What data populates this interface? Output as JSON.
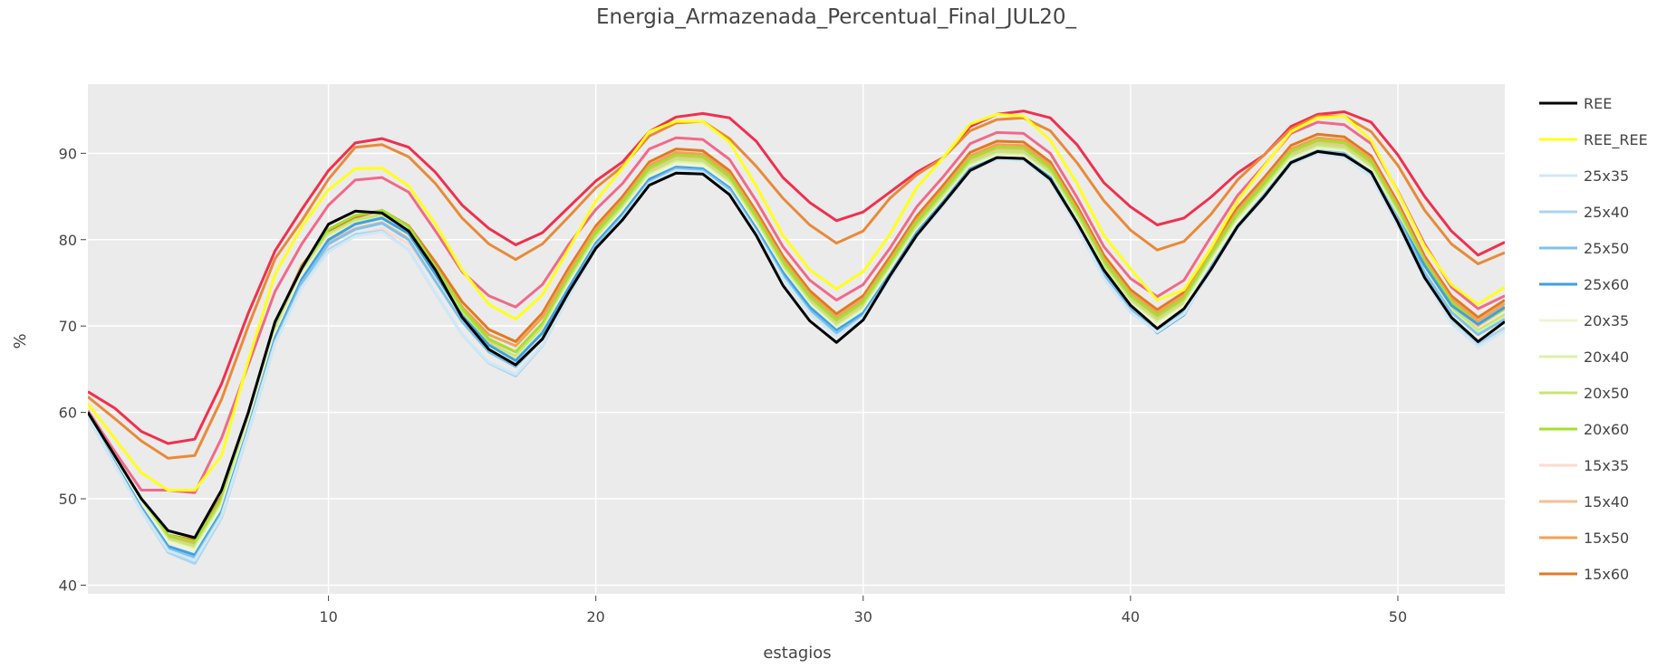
{
  "chart_data": {
    "type": "line",
    "title": "Energia_Armazenada_Percentual_Final_JUL20_",
    "xlabel": "estagios",
    "ylabel": "%",
    "xlim": [
      1,
      54
    ],
    "ylim": [
      39,
      98
    ],
    "xticks": [
      10,
      20,
      30,
      40,
      50
    ],
    "yticks": [
      40,
      50,
      60,
      70,
      80,
      90
    ],
    "grid": true,
    "plot_background": "#ebebeb",
    "legend_position": "right",
    "x": [
      1,
      2,
      3,
      4,
      5,
      6,
      7,
      8,
      9,
      10,
      11,
      12,
      13,
      14,
      15,
      16,
      17,
      18,
      19,
      20,
      21,
      22,
      23,
      24,
      25,
      26,
      27,
      28,
      29,
      30,
      31,
      32,
      33,
      34,
      35,
      36,
      37,
      38,
      39,
      40,
      41,
      42,
      43,
      44,
      45,
      46,
      47,
      48,
      49,
      50,
      51,
      52,
      53,
      54
    ],
    "series": [
      {
        "name": "REE",
        "color": "#000000",
        "width": 3,
        "values": [
          60,
          55,
          50,
          46.3,
          45.5,
          51,
          60,
          70.5,
          76.7,
          81.8,
          83.3,
          83.1,
          81,
          76.5,
          71,
          67.3,
          65.5,
          68.5,
          74,
          79,
          82.3,
          86.3,
          87.7,
          87.6,
          85.2,
          80.5,
          74.7,
          70.6,
          68.1,
          70.7,
          75.8,
          80.5,
          84.2,
          88,
          89.5,
          89.4,
          87,
          82,
          76.5,
          72.4,
          69.7,
          72,
          76.5,
          81.5,
          85,
          88.9,
          90.2,
          89.8,
          87.8,
          82,
          75.6,
          71,
          68.2,
          70.5
        ]
      },
      {
        "name": "REE_REE",
        "color": "#ffff1a",
        "width": 3,
        "values": [
          61,
          57,
          53,
          51,
          51,
          55,
          66,
          76,
          81.5,
          85.8,
          88.2,
          88.3,
          86.2,
          81.8,
          76.5,
          72.5,
          70.8,
          73.6,
          79,
          84.5,
          88.3,
          92.5,
          93.7,
          93.7,
          91.3,
          86.2,
          80.5,
          76.5,
          74.3,
          76.3,
          80.6,
          86,
          89.5,
          93.4,
          94.5,
          94.3,
          91.5,
          86.5,
          80.5,
          76.6,
          73,
          74.2,
          79,
          84.5,
          88.5,
          92.5,
          94.1,
          94.3,
          91.5,
          85.5,
          79.2,
          74.8,
          72.5,
          74.5
        ]
      },
      {
        "name": "25x35",
        "color": "#d0e8f5",
        "width": 3,
        "values": [
          59.5,
          54,
          48.6,
          44,
          42.9,
          48,
          57.8,
          68,
          74.5,
          78.6,
          80.4,
          80.9,
          78.8,
          73.8,
          69,
          65.8,
          64.4,
          67.8,
          73.5,
          79,
          82.5,
          86.5,
          88,
          87.8,
          85.5,
          80.8,
          75.5,
          71.5,
          68.8,
          71,
          75.5,
          80.4,
          84,
          88,
          89.3,
          89.2,
          86.8,
          81.5,
          75.5,
          71.6,
          69.3,
          71.4,
          76.5,
          81.3,
          84.9,
          88.7,
          90,
          89.6,
          87.3,
          81.6,
          75.5,
          70.3,
          67.6,
          69.5
        ]
      },
      {
        "name": "25x40",
        "color": "#a9d4ee",
        "width": 3,
        "values": [
          59.5,
          54,
          48.6,
          43.8,
          42.5,
          47.8,
          57.7,
          68,
          74.5,
          78.8,
          80.6,
          81,
          78.8,
          73.8,
          69,
          65.7,
          64.2,
          67.7,
          73.5,
          79,
          82.5,
          86.5,
          88,
          87.8,
          85.5,
          80.8,
          75.5,
          71.5,
          68.8,
          71,
          75.5,
          80.4,
          84,
          88,
          89.3,
          89.2,
          86.8,
          81.5,
          75.5,
          71.6,
          69.3,
          71.4,
          76.5,
          81.3,
          84.9,
          88.7,
          90,
          89.6,
          87.3,
          81.6,
          75.5,
          70.8,
          68,
          69.8
        ]
      },
      {
        "name": "25x50",
        "color": "#7fc2ea",
        "width": 3,
        "values": [
          59.5,
          54,
          48.8,
          44.2,
          43.2,
          48.2,
          58,
          68.3,
          75,
          79.5,
          81.2,
          81.9,
          80,
          75.2,
          70.5,
          67,
          65.3,
          68.5,
          74,
          79.3,
          82.7,
          86.7,
          88.2,
          88,
          85.8,
          81,
          75.8,
          71.8,
          69.2,
          71.2,
          75.8,
          80.6,
          84.2,
          88.1,
          89.4,
          89.3,
          87,
          81.8,
          76,
          72,
          69.6,
          71.8,
          76.8,
          81.6,
          85.2,
          89,
          90.3,
          90,
          87.8,
          82.5,
          76.2,
          71.6,
          69,
          70.8
        ]
      },
      {
        "name": "25x60",
        "color": "#3ea0e3",
        "width": 3,
        "values": [
          59.5,
          54.2,
          49,
          44.5,
          43.5,
          48.5,
          58.2,
          68.6,
          75.4,
          80,
          81.8,
          82.5,
          80.7,
          76,
          71.2,
          67.8,
          66,
          69.2,
          74.5,
          79.6,
          83,
          87,
          88.4,
          88.2,
          86,
          81.3,
          76.2,
          72.2,
          69.5,
          71.5,
          76,
          80.8,
          84.4,
          88.2,
          89.5,
          89.4,
          87.2,
          82,
          76.4,
          72.3,
          69.2,
          71.3,
          76.6,
          81.5,
          85,
          88.9,
          90.2,
          89.8,
          87.6,
          82.5,
          77,
          72.4,
          70.2,
          72.2
        ]
      },
      {
        "name": "20x35",
        "color": "#eef5d3",
        "width": 3,
        "values": [
          59.6,
          54.4,
          49.4,
          45,
          44,
          49,
          58.6,
          69,
          75.8,
          80.2,
          81.8,
          82.4,
          80.5,
          75.8,
          71,
          67.5,
          66,
          69.3,
          74.8,
          79.8,
          83.3,
          87.3,
          88.8,
          88.6,
          86.3,
          81.6,
          76.4,
          72.4,
          69.7,
          71.8,
          76.3,
          81,
          84.6,
          88.4,
          89.7,
          89.6,
          87.3,
          82.2,
          76.5,
          72.5,
          70.2,
          72.2,
          77.2,
          82,
          85.5,
          89.2,
          90.5,
          90.2,
          88,
          82.6,
          76.4,
          71.5,
          68.9,
          70.7
        ]
      },
      {
        "name": "20x40",
        "color": "#ddf0a8",
        "width": 3,
        "values": [
          59.6,
          54.5,
          49.5,
          45.1,
          44.2,
          49.2,
          58.8,
          69.2,
          76,
          80.4,
          82,
          82.6,
          80.7,
          76,
          71.2,
          67.7,
          66.2,
          69.5,
          75,
          80,
          83.5,
          87.5,
          89,
          88.8,
          86.5,
          81.8,
          76.6,
          72.6,
          69.9,
          72,
          76.5,
          81.2,
          84.8,
          88.6,
          89.9,
          89.8,
          87.5,
          82.4,
          76.7,
          72.7,
          70.4,
          72.4,
          77.4,
          82.2,
          85.7,
          89.4,
          90.7,
          90.4,
          88.2,
          82.8,
          76.6,
          71.8,
          69.2,
          71
        ]
      },
      {
        "name": "20x50",
        "color": "#c6e57a",
        "width": 3,
        "values": [
          59.7,
          54.6,
          49.7,
          45.4,
          44.5,
          49.5,
          59.1,
          69.5,
          76.3,
          80.7,
          82.3,
          82.9,
          81,
          76.3,
          71.5,
          68,
          66.5,
          69.8,
          75.3,
          80.3,
          83.8,
          87.8,
          89.3,
          89.1,
          86.8,
          82.1,
          76.9,
          72.9,
          70.2,
          72.3,
          76.8,
          81.5,
          85.1,
          88.9,
          90.2,
          90.1,
          87.8,
          82.7,
          77,
          73,
          70.7,
          72.7,
          77.7,
          82.5,
          86,
          89.7,
          91,
          90.7,
          88.5,
          83.1,
          76.9,
          72.2,
          69.5,
          71.3
        ]
      },
      {
        "name": "20x60",
        "color": "#a3e02e",
        "width": 3,
        "values": [
          60,
          55,
          50,
          45.8,
          45,
          50,
          59.5,
          70,
          76.8,
          81.2,
          82.8,
          83.4,
          81.5,
          76.8,
          72,
          68.5,
          67,
          70.3,
          75.8,
          80.8,
          84.3,
          88.3,
          89.8,
          89.6,
          87.3,
          82.6,
          77.4,
          73.4,
          70.7,
          72.8,
          77.3,
          82,
          85.6,
          89.4,
          90.7,
          90.6,
          88.3,
          83.2,
          77.5,
          73.5,
          71.2,
          73.2,
          78.2,
          83,
          86.5,
          90.2,
          91.5,
          91.2,
          89,
          83.6,
          77.4,
          72.8,
          70.2,
          72
        ]
      },
      {
        "name": "15x35",
        "color": "#fbdad0",
        "width": 3,
        "values": [
          59.5,
          54.4,
          49.4,
          45.1,
          44.3,
          49.3,
          58.9,
          69.3,
          76.1,
          79,
          80.5,
          81.3,
          79.5,
          75.3,
          70.8,
          67.6,
          66.4,
          69.6,
          75,
          80,
          83.5,
          87.5,
          89,
          88.8,
          86.5,
          81.8,
          76.6,
          72.6,
          69.9,
          72,
          76.5,
          81.2,
          84.8,
          88.6,
          89.9,
          89.8,
          87.5,
          82.4,
          76.7,
          72.7,
          70.4,
          72.4,
          77.4,
          82.2,
          85.7,
          89.4,
          90.7,
          90.4,
          88.2,
          82.8,
          76.6,
          72,
          69.5,
          71.4
        ]
      },
      {
        "name": "15x40",
        "color": "#f6bf95",
        "width": 3,
        "values": [
          59.6,
          54.6,
          49.6,
          45.4,
          44.6,
          49.6,
          59.2,
          69.6,
          76.4,
          79.8,
          81.3,
          82,
          80.2,
          76,
          71.5,
          68.3,
          67,
          70.3,
          75.6,
          80.6,
          84,
          88,
          89.5,
          89.3,
          87,
          82.3,
          77.1,
          73.1,
          70.4,
          72.5,
          77,
          81.7,
          85.3,
          89.1,
          90.4,
          90.3,
          88,
          82.9,
          77.2,
          73.2,
          70.9,
          72.9,
          77.9,
          82.7,
          86.2,
          89.9,
          91.2,
          90.9,
          88.7,
          83.3,
          77.1,
          72.5,
          70,
          72
        ]
      },
      {
        "name": "15x50",
        "color": "#f1a258",
        "width": 3,
        "values": [
          59.7,
          54.7,
          49.8,
          45.6,
          44.9,
          49.9,
          59.5,
          69.9,
          76.7,
          80.4,
          82,
          82.8,
          81,
          76.8,
          72.2,
          69,
          67.7,
          71,
          76.3,
          81.2,
          84.6,
          88.6,
          90.1,
          89.9,
          87.6,
          82.9,
          77.7,
          73.7,
          71,
          73.1,
          77.6,
          82.3,
          85.9,
          89.7,
          91,
          90.9,
          88.6,
          83.5,
          77.8,
          73.8,
          71.5,
          73.5,
          78.5,
          83.3,
          86.8,
          90.5,
          91.8,
          91.5,
          89.3,
          83.9,
          77.7,
          73.1,
          70.6,
          72.6
        ]
      },
      {
        "name": "15x60",
        "color": "#e07a22",
        "width": 3,
        "values": [
          59.8,
          54.8,
          49.9,
          45.8,
          45.2,
          50.2,
          59.8,
          70.2,
          77,
          81,
          82.6,
          83.4,
          81.6,
          77.4,
          72.8,
          69.6,
          68.2,
          71.5,
          76.8,
          81.6,
          85,
          89,
          90.5,
          90.3,
          88,
          83.3,
          78.1,
          74.1,
          71.4,
          73.5,
          78,
          82.7,
          86.3,
          90.1,
          91.4,
          91.3,
          89,
          83.9,
          78.2,
          74.2,
          71.9,
          73.9,
          78.9,
          83.7,
          87.2,
          90.9,
          92.2,
          91.9,
          89.7,
          84.3,
          78.1,
          73.5,
          71,
          73
        ]
      },
      {
        "name": "",
        "color": "#f06a8a",
        "width": 3,
        "values": [
          60.2,
          55.5,
          51,
          51,
          50.7,
          57,
          65.5,
          74,
          79.5,
          84,
          86.9,
          87.2,
          85.5,
          81,
          76.3,
          73.5,
          72.2,
          74.8,
          79.5,
          83.5,
          86.5,
          90.5,
          91.8,
          91.6,
          89.3,
          84.5,
          79.2,
          75.3,
          73,
          74.8,
          79,
          83.8,
          87.3,
          91.1,
          92.4,
          92.3,
          90,
          84.9,
          79.2,
          75.5,
          73.4,
          75.3,
          80.3,
          85.1,
          88.6,
          92.3,
          93.6,
          93.3,
          91.1,
          85.6,
          79.5,
          74.5,
          72,
          73.5
        ]
      },
      {
        "name": "",
        "color": "#e88a3a",
        "width": 3,
        "values": [
          61.8,
          59.3,
          56.7,
          54.7,
          55,
          61.5,
          70,
          77.8,
          82.2,
          87,
          90.7,
          91,
          89.6,
          86.5,
          82.5,
          79.5,
          77.7,
          79.5,
          82.7,
          86,
          88.5,
          92,
          93.5,
          93.7,
          91.7,
          88.5,
          84.8,
          81.7,
          79.6,
          81,
          84.8,
          87.5,
          89.5,
          92.6,
          93.9,
          94.1,
          92.6,
          88.9,
          84.5,
          81.1,
          78.8,
          79.8,
          82.9,
          86.9,
          89.8,
          92.8,
          94.3,
          94.3,
          92.5,
          88.6,
          83.4,
          79.5,
          77.2,
          78.5
        ]
      },
      {
        "name": "",
        "color": "#f0304f",
        "width": 3,
        "values": [
          62.4,
          60.5,
          57.8,
          56.4,
          56.9,
          63.3,
          71.5,
          78.7,
          83.5,
          88,
          91.2,
          91.7,
          90.7,
          87.8,
          84,
          81.3,
          79.4,
          80.8,
          83.8,
          86.8,
          89,
          92.5,
          94.2,
          94.6,
          94.1,
          91.4,
          87.2,
          84.3,
          82.2,
          83.2,
          85.5,
          87.8,
          89.5,
          93.1,
          94.5,
          94.9,
          94.1,
          91,
          86.6,
          83.8,
          81.7,
          82.5,
          84.9,
          87.7,
          89.8,
          93.1,
          94.5,
          94.8,
          93.6,
          89.8,
          85,
          81,
          78.2,
          79.7
        ]
      }
    ]
  }
}
